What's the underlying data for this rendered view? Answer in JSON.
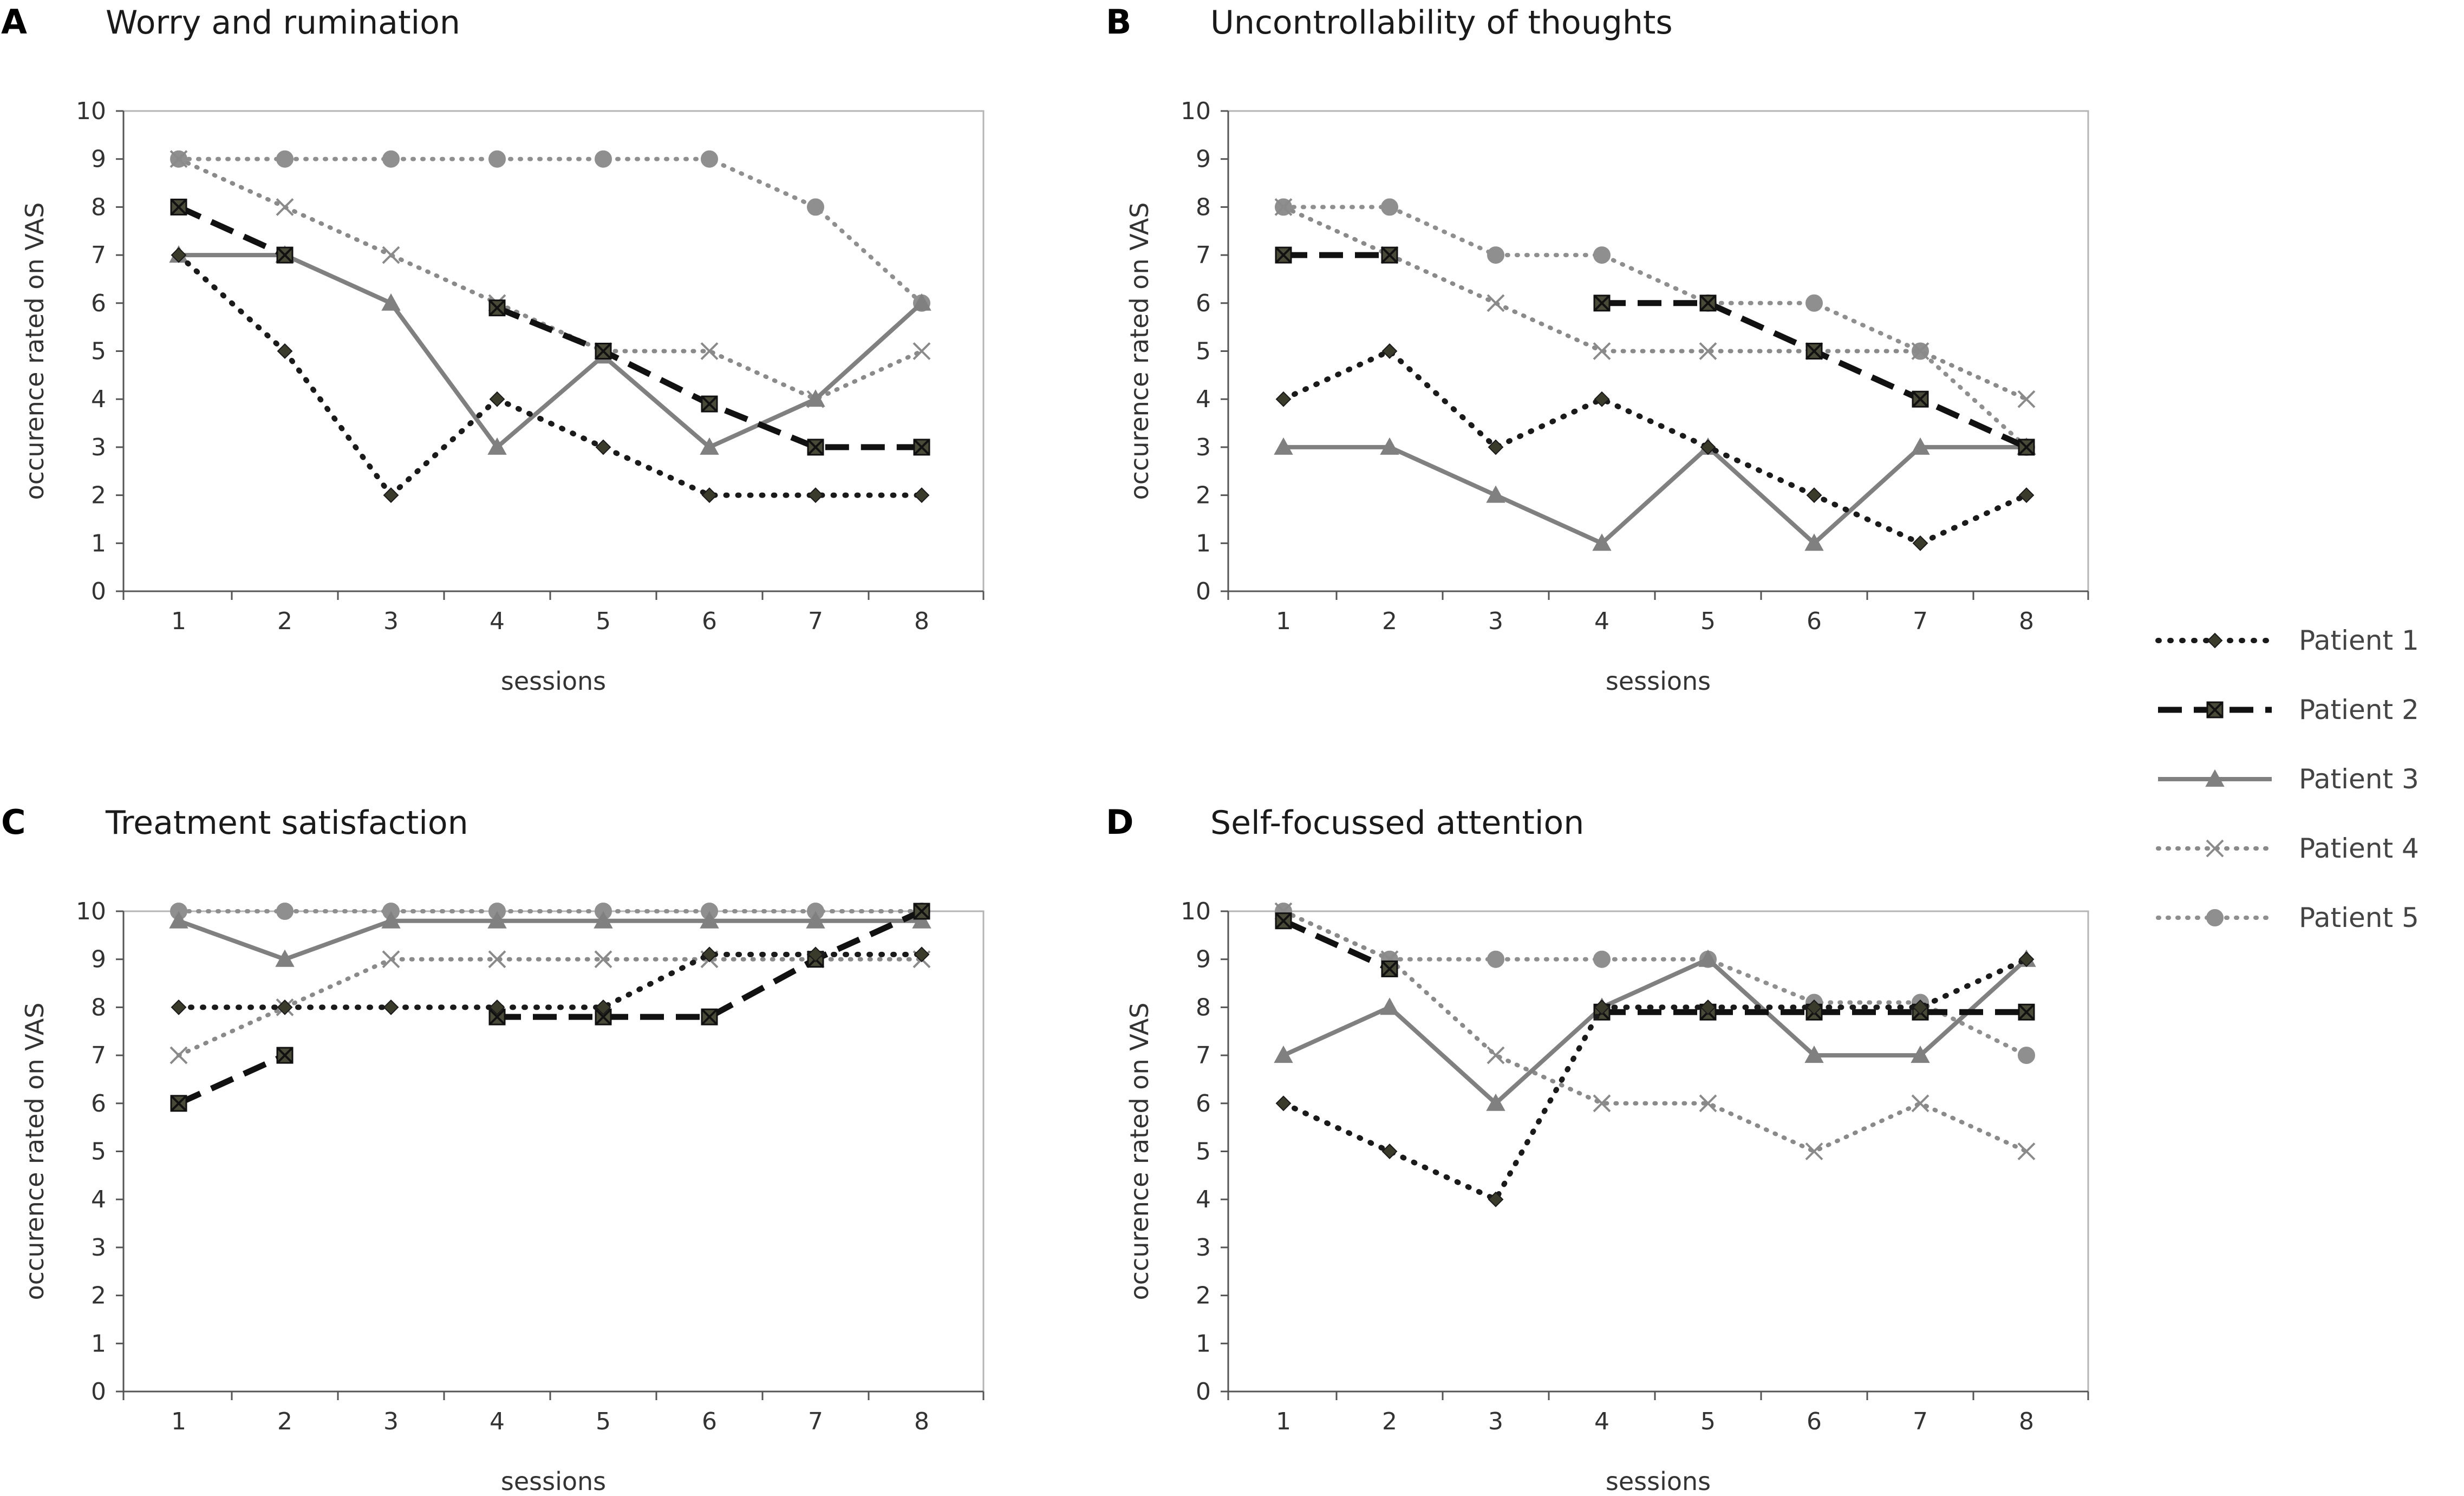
{
  "chart_data": [
    {
      "type": "line",
      "panel_letter": "A",
      "title": "Worry and rumination",
      "xlabel": "sessions",
      "ylabel": "occurence rated on VAS",
      "categories": [
        "1",
        "2",
        "3",
        "4",
        "5",
        "6",
        "7",
        "8"
      ],
      "yticks": [
        "0",
        "1",
        "2",
        "3",
        "4",
        "5",
        "6",
        "7",
        "8",
        "9",
        "10"
      ],
      "ylim": [
        0,
        10
      ],
      "series": [
        {
          "name": "Patient 1",
          "values": [
            7,
            5,
            2,
            4,
            3,
            2,
            2,
            2
          ]
        },
        {
          "name": "Patient 2",
          "values": [
            8,
            7,
            null,
            5.9,
            5,
            3.9,
            3,
            3
          ]
        },
        {
          "name": "Patient 3",
          "values": [
            7,
            7,
            6,
            3,
            4.9,
            3,
            4,
            6
          ]
        },
        {
          "name": "Patient 4",
          "values": [
            9,
            8,
            7,
            6,
            5,
            5,
            4,
            5
          ]
        },
        {
          "name": "Patient 5",
          "values": [
            9,
            9,
            9,
            9,
            9,
            9,
            8,
            6
          ]
        }
      ]
    },
    {
      "type": "line",
      "panel_letter": "B",
      "title": "Uncontrollability of thoughts",
      "xlabel": "sessions",
      "ylabel": "occurence rated on VAS",
      "categories": [
        "1",
        "2",
        "3",
        "4",
        "5",
        "6",
        "7",
        "8"
      ],
      "yticks": [
        "0",
        "1",
        "2",
        "3",
        "4",
        "5",
        "6",
        "7",
        "8",
        "9",
        "10"
      ],
      "ylim": [
        0,
        10
      ],
      "series": [
        {
          "name": "Patient 1",
          "values": [
            4,
            5,
            3,
            4,
            3,
            2,
            1,
            2
          ]
        },
        {
          "name": "Patient 2",
          "values": [
            7,
            7,
            null,
            6,
            6,
            5,
            4,
            3
          ]
        },
        {
          "name": "Patient 3",
          "values": [
            3,
            3,
            2,
            1,
            3,
            1,
            3,
            3
          ]
        },
        {
          "name": "Patient 4",
          "values": [
            8,
            7,
            6,
            5,
            5,
            5,
            5,
            4
          ]
        },
        {
          "name": "Patient 5",
          "values": [
            8,
            8,
            7,
            7,
            6,
            6,
            5,
            3
          ]
        }
      ]
    },
    {
      "type": "line",
      "panel_letter": "C",
      "title": "Treatment satisfaction",
      "xlabel": "sessions",
      "ylabel": "occurence rated on VAS",
      "categories": [
        "1",
        "2",
        "3",
        "4",
        "5",
        "6",
        "7",
        "8"
      ],
      "yticks": [
        "0",
        "1",
        "2",
        "3",
        "4",
        "5",
        "6",
        "7",
        "8",
        "9",
        "10"
      ],
      "ylim": [
        0,
        10
      ],
      "series": [
        {
          "name": "Patient 1",
          "values": [
            8,
            8,
            8,
            8,
            8,
            9.1,
            9.1,
            9.1
          ]
        },
        {
          "name": "Patient 2",
          "values": [
            6,
            7,
            null,
            7.8,
            7.8,
            7.8,
            9,
            10
          ]
        },
        {
          "name": "Patient 3",
          "values": [
            9.8,
            9,
            9.8,
            9.8,
            9.8,
            9.8,
            9.8,
            9.8
          ]
        },
        {
          "name": "Patient 4",
          "values": [
            7,
            8,
            9,
            9,
            9,
            9,
            9,
            9
          ]
        },
        {
          "name": "Patient 5",
          "values": [
            10,
            10,
            10,
            10,
            10,
            10,
            10,
            10
          ]
        }
      ]
    },
    {
      "type": "line",
      "panel_letter": "D",
      "title": "Self-focussed attention",
      "xlabel": "sessions",
      "ylabel": "occurence rated on VAS",
      "categories": [
        "1",
        "2",
        "3",
        "4",
        "5",
        "6",
        "7",
        "8"
      ],
      "yticks": [
        "0",
        "1",
        "2",
        "3",
        "4",
        "5",
        "6",
        "7",
        "8",
        "9",
        "10"
      ],
      "ylim": [
        0,
        10
      ],
      "series": [
        {
          "name": "Patient 1",
          "values": [
            6,
            5,
            4,
            8,
            8,
            8,
            8,
            9
          ]
        },
        {
          "name": "Patient 2",
          "values": [
            9.8,
            8.8,
            null,
            7.9,
            7.9,
            7.9,
            7.9,
            7.9
          ]
        },
        {
          "name": "Patient 3",
          "values": [
            7,
            8,
            6,
            8,
            9,
            7,
            7,
            9
          ]
        },
        {
          "name": "Patient 4",
          "values": [
            10,
            9,
            7,
            6,
            6,
            5,
            6,
            5
          ]
        },
        {
          "name": "Patient 5",
          "values": [
            10,
            9,
            9,
            9,
            9,
            8.1,
            8.1,
            7
          ]
        }
      ]
    }
  ],
  "legend": [
    {
      "label": "Patient 1",
      "color": "#1a1a1a",
      "marker": "diamond",
      "line": "dotted"
    },
    {
      "label": "Patient 2",
      "color": "#111111",
      "marker": "square-x",
      "line": "dashed"
    },
    {
      "label": "Patient 3",
      "color": "#808080",
      "marker": "triangle",
      "line": "solid"
    },
    {
      "label": "Patient 4",
      "color": "#8a8a8a",
      "marker": "cross",
      "line": "dotted"
    },
    {
      "label": "Patient 5",
      "color": "#8f8f8f",
      "marker": "circle",
      "line": "dotted"
    }
  ]
}
